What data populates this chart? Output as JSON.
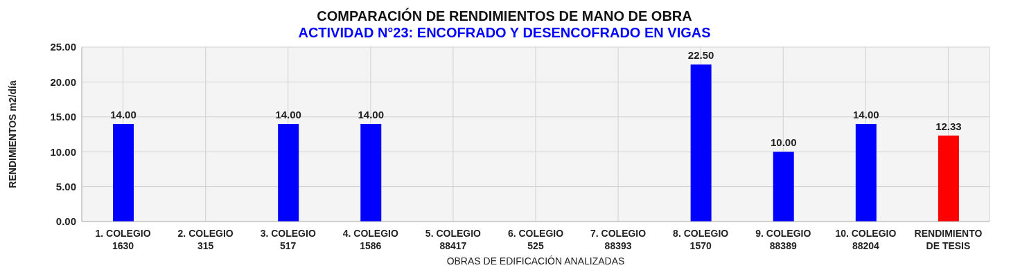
{
  "chart_data": {
    "type": "bar",
    "title": "COMPARACIÓN DE RENDIMIENTOS DE MANO DE OBRA",
    "subtitle": "ACTIVIDAD N°23: ENCOFRADO Y DESENCOFRADO EN VIGAS",
    "xlabel": "OBRAS DE EDIFICACIÓN ANALIZADAS",
    "ylabel": "RENDIMIENTOS  m2/día",
    "categories": [
      "1. COLEGIO 1630",
      "2. COLEGIO 315",
      "3. COLEGIO 517",
      "4. COLEGIO 1586",
      "5. COLEGIO 88417",
      "6. COLEGIO 525",
      "7. COLEGIO 88393",
      "8. COLEGIO 1570",
      "9. COLEGIO 88389",
      "10. COLEGIO 88204",
      "RENDIMIENTO DE TESIS"
    ],
    "values": [
      14,
      null,
      14,
      14,
      null,
      null,
      null,
      22.5,
      10,
      14,
      12.33
    ],
    "value_labels": [
      "14.00",
      null,
      "14.00",
      "14.00",
      null,
      null,
      null,
      "22.50",
      "10.00",
      "14.00",
      "12.33"
    ],
    "colors": [
      "#0000ff",
      "#0000ff",
      "#0000ff",
      "#0000ff",
      "#0000ff",
      "#0000ff",
      "#0000ff",
      "#0000ff",
      "#0000ff",
      "#0000ff",
      "#ff0000"
    ],
    "ylim": [
      0,
      25
    ],
    "yticks": [
      {
        "value": 0,
        "label": "0.00"
      },
      {
        "value": 5,
        "label": "5.00"
      },
      {
        "value": 10,
        "label": "10.00"
      },
      {
        "value": 15,
        "label": "15.00"
      },
      {
        "value": 20,
        "label": "20.00"
      },
      {
        "value": 25,
        "label": "25.00"
      }
    ],
    "grid": true
  }
}
